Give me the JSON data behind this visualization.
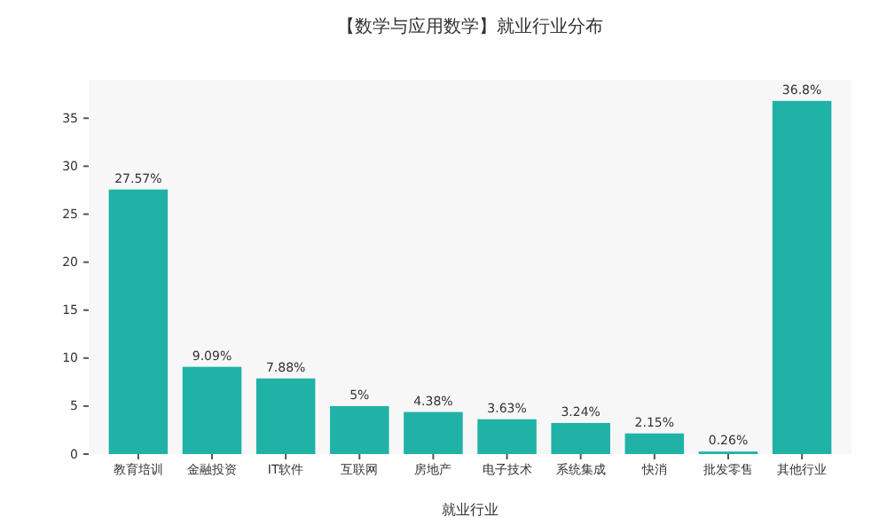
{
  "chart_data": {
    "type": "bar",
    "title": "【数学与应用数学】就业行业分布",
    "xlabel": "就业行业",
    "categories": [
      "教育培训",
      "金融投资",
      "IT软件",
      "互联网",
      "房地产",
      "电子技术",
      "系统集成",
      "快消",
      "批发零售",
      "其他行业"
    ],
    "values": [
      27.57,
      9.09,
      7.88,
      5,
      4.38,
      3.63,
      3.24,
      2.15,
      0.26,
      36.8
    ],
    "value_labels": [
      "27.57%",
      "9.09%",
      "7.88%",
      "5%",
      "4.38%",
      "3.63%",
      "3.24%",
      "2.15%",
      "0.26%",
      "36.8%"
    ],
    "color": "#20b2a6",
    "ylim": [
      0,
      39
    ],
    "yticks": [
      0,
      5,
      10,
      15,
      20,
      25,
      30,
      35
    ],
    "grid": false
  }
}
